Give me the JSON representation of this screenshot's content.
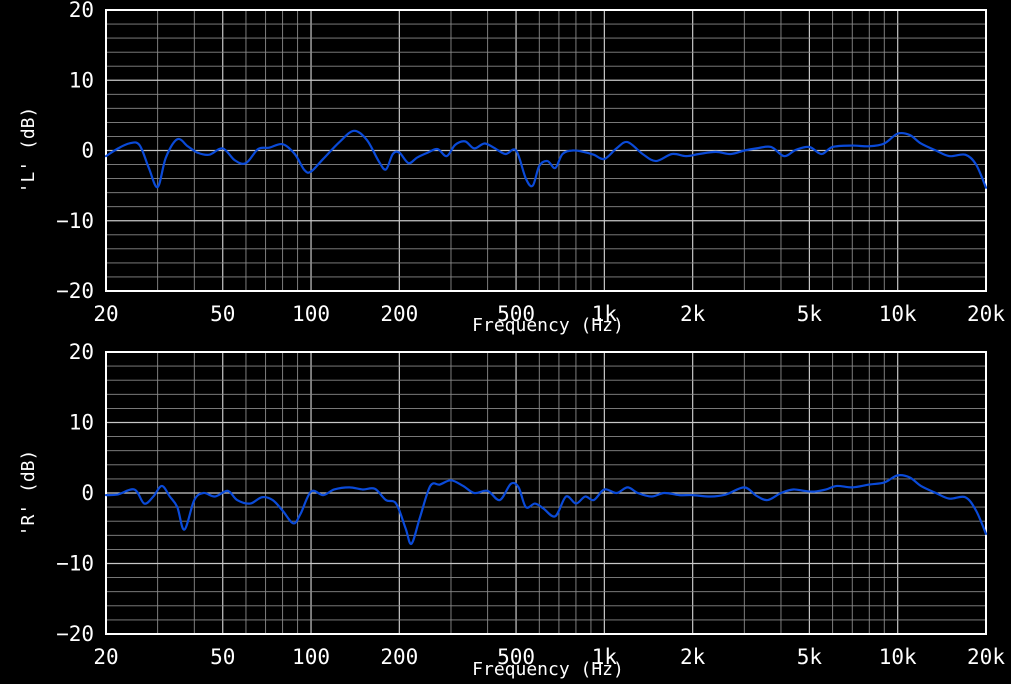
{
  "colors": {
    "background": "#000000",
    "frame": "#ffffff",
    "grid_major": "#c8c8c8",
    "grid_minor": "#8a8a8a",
    "trace": "#0a4ad8",
    "text": "#ffffff"
  },
  "chart_data": [
    {
      "type": "line",
      "xscale": "log",
      "xlim": [
        20,
        20000
      ],
      "ylim": [
        -20,
        20
      ],
      "xlabel": "Frequency (Hz)",
      "ylabel": "'L' (dB)",
      "grid": true,
      "xticks": [
        20,
        50,
        100,
        200,
        500,
        1000,
        2000,
        5000,
        10000,
        20000
      ],
      "xtick_labels": [
        "20",
        "50",
        "100",
        "200",
        "500",
        "1k",
        "2k",
        "5k",
        "10k",
        "20k"
      ],
      "yticks": [
        -20,
        -10,
        0,
        10,
        20
      ],
      "ytick_labels": [
        "−20",
        "−10",
        "0",
        "10",
        "20"
      ],
      "series": [
        {
          "color": "#0a4ad8",
          "x": [
            20,
            22,
            24,
            26,
            28,
            30,
            32,
            35,
            38,
            41,
            45,
            50,
            55,
            60,
            66,
            72,
            80,
            88,
            95,
            100,
            110,
            125,
            140,
            155,
            170,
            180,
            190,
            200,
            215,
            230,
            250,
            270,
            290,
            310,
            335,
            360,
            390,
            420,
            460,
            500,
            540,
            570,
            600,
            640,
            680,
            720,
            780,
            850,
            920,
            1000,
            1100,
            1200,
            1350,
            1500,
            1700,
            1900,
            2100,
            2400,
            2700,
            3000,
            3300,
            3700,
            4100,
            4500,
            5000,
            5500,
            6000,
            7000,
            8000,
            9000,
            10000,
            11000,
            12000,
            13500,
            15000,
            17000,
            18500,
            20000
          ],
          "y": [
            -0.8,
            0.3,
            1.0,
            0.8,
            -2.5,
            -5.2,
            -1.0,
            1.6,
            0.6,
            -0.3,
            -0.6,
            0.3,
            -1.4,
            -1.8,
            0.2,
            0.4,
            0.9,
            -0.5,
            -2.8,
            -3.0,
            -1.2,
            1.2,
            2.8,
            1.5,
            -1.5,
            -2.7,
            -0.5,
            -0.3,
            -1.8,
            -1.0,
            -0.3,
            0.2,
            -0.8,
            0.8,
            1.3,
            0.3,
            1.0,
            0.4,
            -0.5,
            0.0,
            -4.0,
            -5.0,
            -2.2,
            -1.5,
            -2.5,
            -0.5,
            0.0,
            -0.2,
            -0.6,
            -1.2,
            0.3,
            1.2,
            -0.5,
            -1.5,
            -0.5,
            -0.8,
            -0.5,
            -0.2,
            -0.5,
            0.0,
            0.3,
            0.5,
            -0.8,
            0.1,
            0.5,
            -0.5,
            0.5,
            0.7,
            0.6,
            1.0,
            2.4,
            2.2,
            1.0,
            0.0,
            -0.8,
            -0.6,
            -2.0,
            -5.3
          ]
        }
      ]
    },
    {
      "type": "line",
      "xscale": "log",
      "xlim": [
        20,
        20000
      ],
      "ylim": [
        -20,
        20
      ],
      "xlabel": "Frequency (Hz)",
      "ylabel": "'R' (dB)",
      "grid": true,
      "xticks": [
        20,
        50,
        100,
        200,
        500,
        1000,
        2000,
        5000,
        10000,
        20000
      ],
      "xtick_labels": [
        "20",
        "50",
        "100",
        "200",
        "500",
        "1k",
        "2k",
        "5k",
        "10k",
        "20k"
      ],
      "yticks": [
        -20,
        -10,
        0,
        10,
        20
      ],
      "ytick_labels": [
        "−20",
        "−10",
        "0",
        "10",
        "20"
      ],
      "series": [
        {
          "color": "#0a4ad8",
          "x": [
            20,
            22,
            25,
            27,
            29,
            31,
            33,
            35,
            37,
            40,
            43,
            47,
            52,
            56,
            62,
            68,
            74,
            80,
            87,
            92,
            100,
            110,
            120,
            135,
            150,
            165,
            180,
            195,
            210,
            220,
            235,
            255,
            275,
            300,
            330,
            360,
            400,
            440,
            480,
            510,
            540,
            580,
            620,
            680,
            740,
            800,
            860,
            920,
            1000,
            1100,
            1200,
            1300,
            1450,
            1600,
            1800,
            2000,
            2300,
            2600,
            3000,
            3300,
            3600,
            4000,
            4400,
            4800,
            5200,
            5700,
            6200,
            7000,
            8000,
            9000,
            10000,
            11000,
            12000,
            13500,
            15000,
            17000,
            18500,
            20000
          ],
          "y": [
            -0.3,
            -0.2,
            0.5,
            -1.5,
            -0.5,
            1.0,
            -0.5,
            -2.0,
            -5.2,
            -1.0,
            0.0,
            -0.5,
            0.3,
            -1.0,
            -1.5,
            -0.6,
            -1.0,
            -2.5,
            -4.3,
            -3.0,
            0.2,
            -0.3,
            0.5,
            0.8,
            0.5,
            0.6,
            -1.0,
            -1.5,
            -5.0,
            -7.2,
            -3.5,
            1.0,
            1.2,
            1.8,
            1.0,
            0.0,
            0.3,
            -1.0,
            1.3,
            0.8,
            -2.0,
            -1.5,
            -2.2,
            -3.3,
            -0.5,
            -1.5,
            -0.5,
            -1.0,
            0.5,
            0.0,
            0.8,
            0.0,
            -0.5,
            0.0,
            -0.3,
            -0.3,
            -0.5,
            -0.2,
            0.8,
            -0.4,
            -1.0,
            0.0,
            0.5,
            0.3,
            0.2,
            0.5,
            1.0,
            0.8,
            1.2,
            1.5,
            2.5,
            2.2,
            1.0,
            0.0,
            -0.8,
            -0.6,
            -2.5,
            -5.8
          ]
        }
      ]
    }
  ]
}
